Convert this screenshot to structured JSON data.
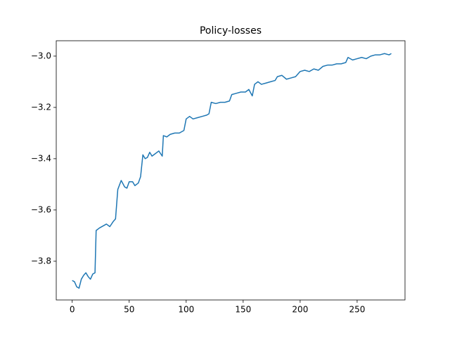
{
  "chart_data": {
    "type": "line",
    "title": "Policy-losses",
    "x": [
      0,
      2,
      4,
      6,
      8,
      10,
      12,
      14,
      16,
      18,
      20,
      21,
      24,
      28,
      30,
      33,
      36,
      38,
      40,
      43,
      46,
      48,
      50,
      53,
      55,
      58,
      60,
      62,
      64,
      66,
      68,
      70,
      73,
      76,
      79,
      80,
      83,
      86,
      90,
      94,
      98,
      100,
      103,
      106,
      110,
      114,
      118,
      120,
      122,
      126,
      130,
      134,
      138,
      140,
      144,
      148,
      152,
      155,
      158,
      160,
      163,
      166,
      170,
      174,
      178,
      180,
      184,
      188,
      192,
      196,
      200,
      204,
      208,
      212,
      216,
      220,
      224,
      228,
      232,
      236,
      240,
      242,
      246,
      250,
      254,
      258,
      262,
      266,
      270,
      274,
      278,
      280
    ],
    "series": [
      {
        "color": "#1f77b4",
        "values": [
          -3.875,
          -3.88,
          -3.9,
          -3.905,
          -3.87,
          -3.855,
          -3.845,
          -3.86,
          -3.87,
          -3.85,
          -3.845,
          -3.68,
          -3.67,
          -3.66,
          -3.655,
          -3.665,
          -3.645,
          -3.635,
          -3.52,
          -3.485,
          -3.51,
          -3.515,
          -3.49,
          -3.49,
          -3.505,
          -3.495,
          -3.47,
          -3.385,
          -3.4,
          -3.395,
          -3.375,
          -3.39,
          -3.38,
          -3.37,
          -3.39,
          -3.31,
          -3.315,
          -3.305,
          -3.3,
          -3.3,
          -3.29,
          -3.245,
          -3.235,
          -3.245,
          -3.24,
          -3.235,
          -3.23,
          -3.225,
          -3.18,
          -3.185,
          -3.18,
          -3.18,
          -3.175,
          -3.15,
          -3.145,
          -3.14,
          -3.14,
          -3.13,
          -3.155,
          -3.11,
          -3.1,
          -3.11,
          -3.105,
          -3.1,
          -3.095,
          -3.08,
          -3.075,
          -3.09,
          -3.085,
          -3.08,
          -3.06,
          -3.055,
          -3.06,
          -3.05,
          -3.055,
          -3.04,
          -3.035,
          -3.035,
          -3.03,
          -3.03,
          -3.025,
          -3.005,
          -3.015,
          -3.01,
          -3.005,
          -3.01,
          -3.0,
          -2.995,
          -2.995,
          -2.99,
          -2.995,
          -2.99
        ]
      }
    ],
    "xlim": [
      -14,
      292
    ],
    "xticks": [
      0,
      50,
      100,
      150,
      200,
      250
    ],
    "ylim": [
      -3.951,
      -2.94
    ],
    "yticks": [
      {
        "value": -3.8,
        "label": "−3.8"
      },
      {
        "value": -3.6,
        "label": "−3.6"
      },
      {
        "value": -3.4,
        "label": "−3.4"
      },
      {
        "value": -3.2,
        "label": "−3.2"
      },
      {
        "value": -3.0,
        "label": "−3.0"
      }
    ]
  }
}
